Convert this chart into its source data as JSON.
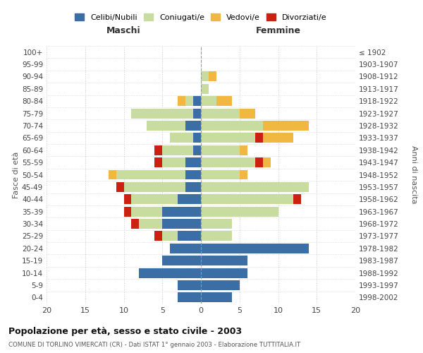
{
  "age_groups": [
    "0-4",
    "5-9",
    "10-14",
    "15-19",
    "20-24",
    "25-29",
    "30-34",
    "35-39",
    "40-44",
    "45-49",
    "50-54",
    "55-59",
    "60-64",
    "65-69",
    "70-74",
    "75-79",
    "80-84",
    "85-89",
    "90-94",
    "95-99",
    "100+"
  ],
  "birth_years": [
    "1998-2002",
    "1993-1997",
    "1988-1992",
    "1983-1987",
    "1978-1982",
    "1973-1977",
    "1968-1972",
    "1963-1967",
    "1958-1962",
    "1953-1957",
    "1948-1952",
    "1943-1947",
    "1938-1942",
    "1933-1937",
    "1928-1932",
    "1923-1927",
    "1918-1922",
    "1913-1917",
    "1908-1912",
    "1903-1907",
    "≤ 1902"
  ],
  "males": {
    "celibe": [
      3,
      3,
      8,
      5,
      4,
      3,
      5,
      5,
      3,
      2,
      2,
      2,
      1,
      1,
      2,
      1,
      1,
      0,
      0,
      0,
      0
    ],
    "coniugato": [
      0,
      0,
      0,
      0,
      0,
      2,
      3,
      4,
      6,
      8,
      9,
      3,
      4,
      3,
      5,
      8,
      1,
      0,
      0,
      0,
      0
    ],
    "vedovo": [
      0,
      0,
      0,
      0,
      0,
      0,
      0,
      0,
      0,
      0,
      1,
      0,
      0,
      0,
      0,
      0,
      1,
      0,
      0,
      0,
      0
    ],
    "divorziato": [
      0,
      0,
      0,
      0,
      0,
      1,
      1,
      1,
      1,
      1,
      0,
      1,
      1,
      0,
      0,
      0,
      0,
      0,
      0,
      0,
      0
    ]
  },
  "females": {
    "nubile": [
      4,
      5,
      6,
      6,
      14,
      0,
      0,
      0,
      0,
      0,
      0,
      0,
      0,
      0,
      0,
      0,
      0,
      0,
      0,
      0,
      0
    ],
    "coniugata": [
      0,
      0,
      0,
      0,
      0,
      4,
      4,
      10,
      12,
      14,
      5,
      7,
      5,
      7,
      8,
      5,
      2,
      1,
      1,
      0,
      0
    ],
    "vedova": [
      0,
      0,
      0,
      0,
      0,
      0,
      0,
      0,
      0,
      0,
      1,
      1,
      1,
      4,
      6,
      2,
      2,
      0,
      1,
      0,
      0
    ],
    "divorziata": [
      0,
      0,
      0,
      0,
      0,
      0,
      0,
      0,
      1,
      0,
      0,
      1,
      0,
      1,
      0,
      0,
      0,
      0,
      0,
      0,
      0
    ]
  },
  "colors": {
    "celibe_nubile": "#3a6ea5",
    "coniugato": "#c8dca0",
    "vedovo": "#f0b840",
    "divorziato": "#cc2010"
  },
  "xlim": [
    -20,
    20
  ],
  "xticklabels": [
    "20",
    "15",
    "10",
    "5",
    "0",
    "5",
    "10",
    "15",
    "20"
  ],
  "title": "Popolazione per età, sesso e stato civile - 2003",
  "subtitle": "COMUNE DI TORLINO VIMERCATI (CR) - Dati ISTAT 1° gennaio 2003 - Elaborazione TUTTITALIA.IT",
  "ylabel_left": "Fasce di età",
  "ylabel_right": "Anni di nascita",
  "maschi_label": "Maschi",
  "femmine_label": "Femmine",
  "legend_labels": [
    "Celibi/Nubili",
    "Coniugati/e",
    "Vedovi/e",
    "Divorziati/e"
  ],
  "bg_color": "#ffffff",
  "grid_color": "#cccccc"
}
